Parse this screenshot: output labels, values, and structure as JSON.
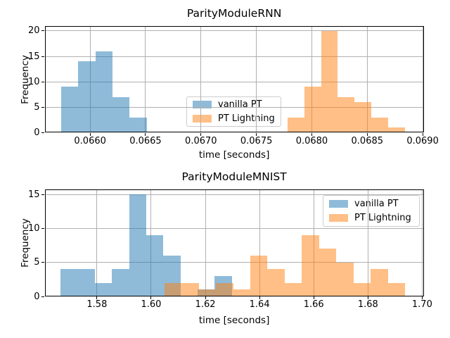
{
  "figure": {
    "background": "#ffffff",
    "grid_color": "#b0b0b0",
    "spine_color": "#000000",
    "text_color": "#000000",
    "legend": {
      "border_color": "#cccccc",
      "entries": [
        {
          "label": "vanilla PT",
          "color": "#1f77b4",
          "alpha": 0.5
        },
        {
          "label": "PT Lightning",
          "color": "#ff7f0e",
          "alpha": 0.5
        }
      ]
    }
  },
  "chart_data": [
    {
      "type": "bar",
      "subtype": "histogram",
      "title": "ParityModuleRNN",
      "xlabel": "time [seconds]",
      "ylabel": "Frequency",
      "xlim": [
        0.06559,
        0.06901
      ],
      "ylim": [
        0,
        21
      ],
      "grid": true,
      "legend_loc": "center",
      "xticks": [
        0.066,
        0.0665,
        0.067,
        0.0675,
        0.068,
        0.0685,
        0.069
      ],
      "xtick_labels": [
        "0.0660",
        "0.0665",
        "0.0670",
        "0.0675",
        "0.0680",
        "0.0685",
        "0.0690"
      ],
      "yticks": [
        0,
        5,
        10,
        15,
        20
      ],
      "ytick_labels": [
        "0",
        "5",
        "10",
        "15",
        "20"
      ],
      "series": [
        {
          "name": "vanilla PT",
          "color": "#1f77b4",
          "alpha": 0.5,
          "bin_start": 0.06574,
          "bin_width": 0.000154,
          "counts": [
            9,
            14,
            16,
            7,
            3
          ]
        },
        {
          "name": "PT Lightning",
          "color": "#ff7f0e",
          "alpha": 0.5,
          "bin_start": 0.06778,
          "bin_width": 0.0001514,
          "counts": [
            3,
            9,
            20,
            7,
            6,
            3,
            1
          ]
        }
      ]
    },
    {
      "type": "bar",
      "subtype": "histogram",
      "title": "ParityModuleMNIST",
      "xlabel": "time [seconds]",
      "ylabel": "Frequency",
      "xlim": [
        1.5607,
        1.7006
      ],
      "ylim": [
        0,
        15.75
      ],
      "grid": true,
      "legend_loc": "upper right",
      "xticks": [
        1.58,
        1.6,
        1.62,
        1.64,
        1.66,
        1.68,
        1.7
      ],
      "xtick_labels": [
        "1.58",
        "1.60",
        "1.62",
        "1.64",
        "1.66",
        "1.68",
        "1.70"
      ],
      "yticks": [
        0,
        5,
        10,
        15
      ],
      "ytick_labels": [
        "0",
        "5",
        "10",
        "15"
      ],
      "series": [
        {
          "name": "vanilla PT",
          "color": "#1f77b4",
          "alpha": 0.5,
          "bin_start": 1.5666,
          "bin_width": 0.00632,
          "counts": [
            4,
            4,
            2,
            4,
            15,
            9,
            6,
            0,
            1,
            3
          ]
        },
        {
          "name": "PT Lightning",
          "color": "#ff7f0e",
          "alpha": 0.5,
          "bin_start": 1.6049,
          "bin_width": 0.00634,
          "counts": [
            2,
            2,
            1,
            2,
            1,
            6,
            4,
            2,
            9,
            7,
            5,
            2,
            4,
            2
          ]
        }
      ]
    }
  ]
}
